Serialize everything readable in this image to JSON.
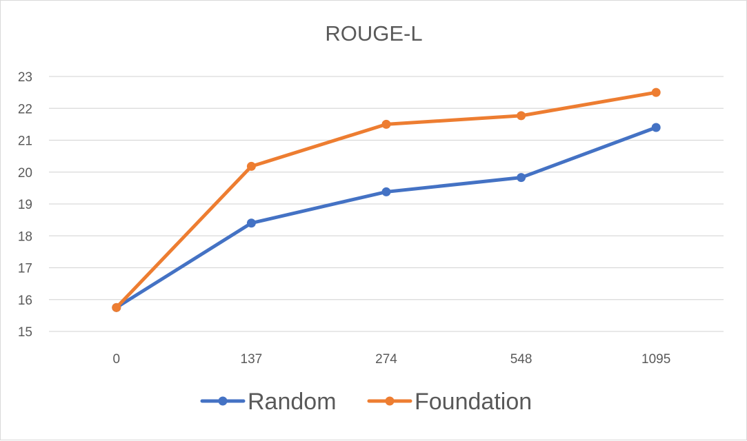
{
  "chart_data": {
    "type": "line",
    "title": "ROUGE-L",
    "xlabel": "",
    "ylabel": "",
    "categories": [
      "0",
      "137",
      "274",
      "548",
      "1095"
    ],
    "ylim": [
      15,
      23
    ],
    "yticks": [
      "15",
      "16",
      "17",
      "18",
      "19",
      "20",
      "21",
      "22",
      "23"
    ],
    "grid": true,
    "legend_position": "bottom",
    "series": [
      {
        "name": "Random",
        "color": "#4472c4",
        "values": [
          15.75,
          18.4,
          19.38,
          19.83,
          21.4
        ]
      },
      {
        "name": "Foundation",
        "color": "#ed7d31",
        "values": [
          15.75,
          20.18,
          21.5,
          21.77,
          22.5
        ]
      }
    ]
  }
}
